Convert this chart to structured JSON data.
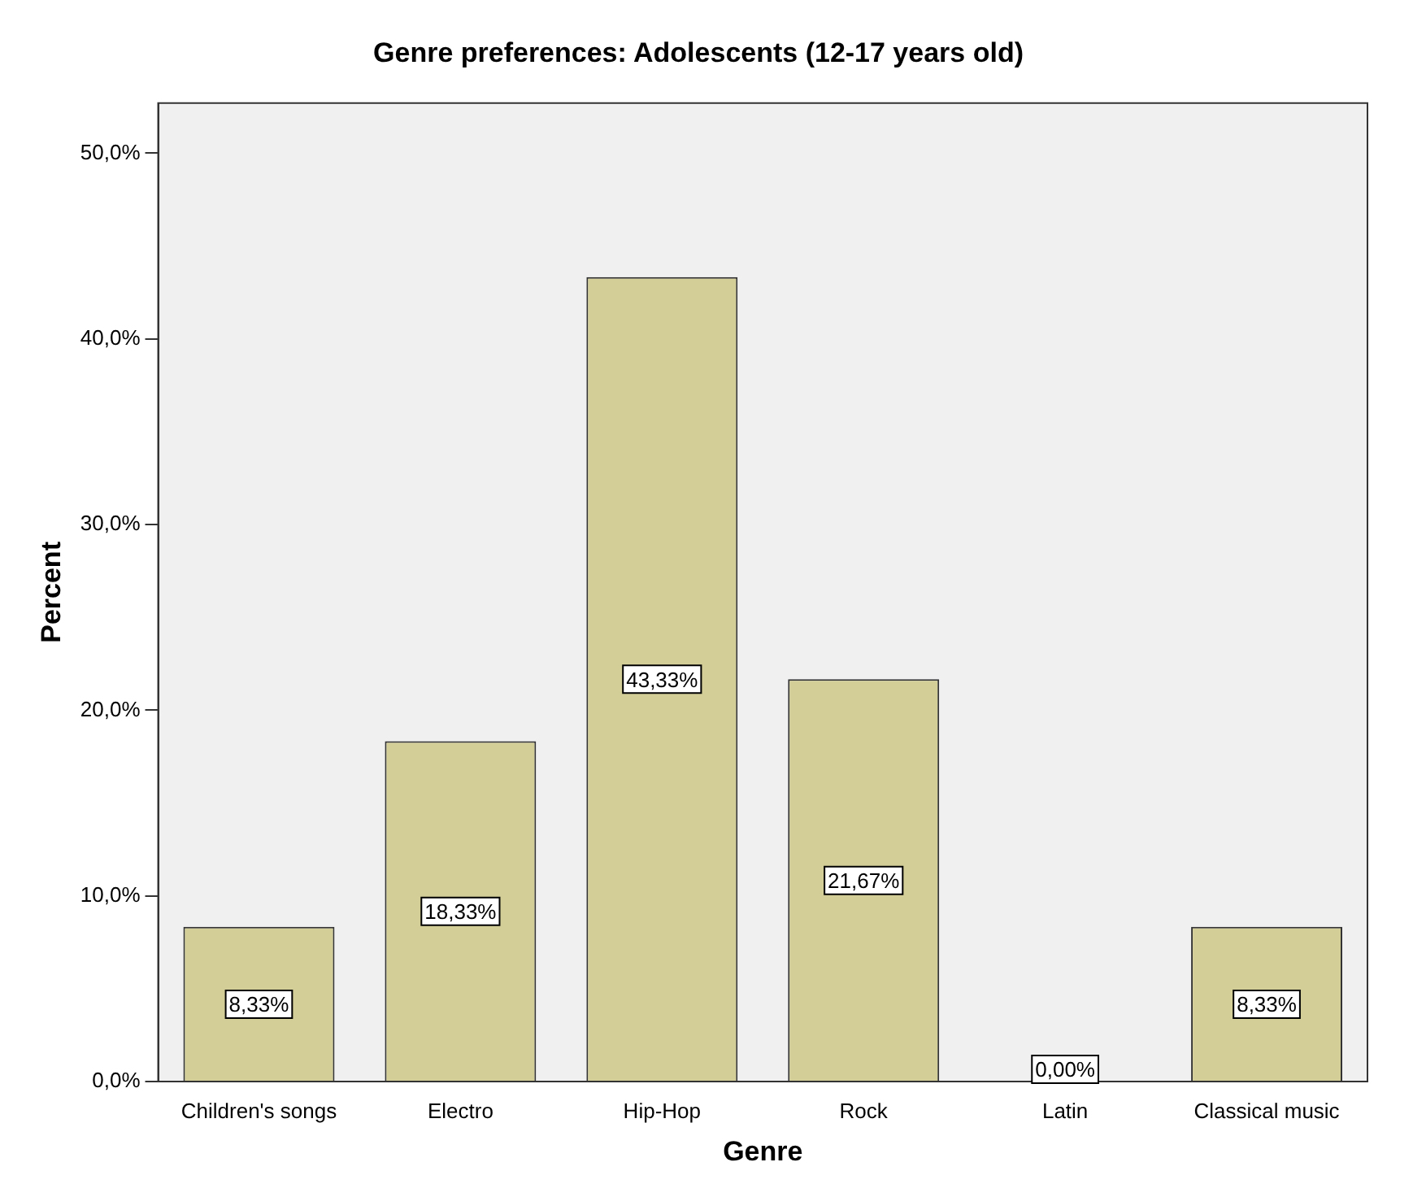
{
  "chart_data": {
    "type": "bar",
    "title": "Genre preferences: Adolescents (12-17 years old)",
    "xlabel": "Genre",
    "ylabel": "Percent",
    "categories": [
      "Children's songs",
      "Electro",
      "Hip-Hop",
      "Rock",
      "Latin",
      "Classical music"
    ],
    "values": [
      8.33,
      18.33,
      43.33,
      21.67,
      0,
      8.33
    ],
    "value_labels": [
      "8,33%",
      "18,33%",
      "43,33%",
      "21,67%",
      "0,00%",
      "8,33%"
    ],
    "color": "#d3ce97",
    "ylim": [
      0,
      52.7
    ],
    "yticks": [
      {
        "value": 0,
        "label": "0,0%"
      },
      {
        "value": 10,
        "label": "10,0%"
      },
      {
        "value": 20,
        "label": "20,0%"
      },
      {
        "value": 30,
        "label": "30,0%"
      },
      {
        "value": 40,
        "label": "40,0%"
      },
      {
        "value": 50,
        "label": "50,0%"
      }
    ],
    "grid": false,
    "legend": false
  }
}
